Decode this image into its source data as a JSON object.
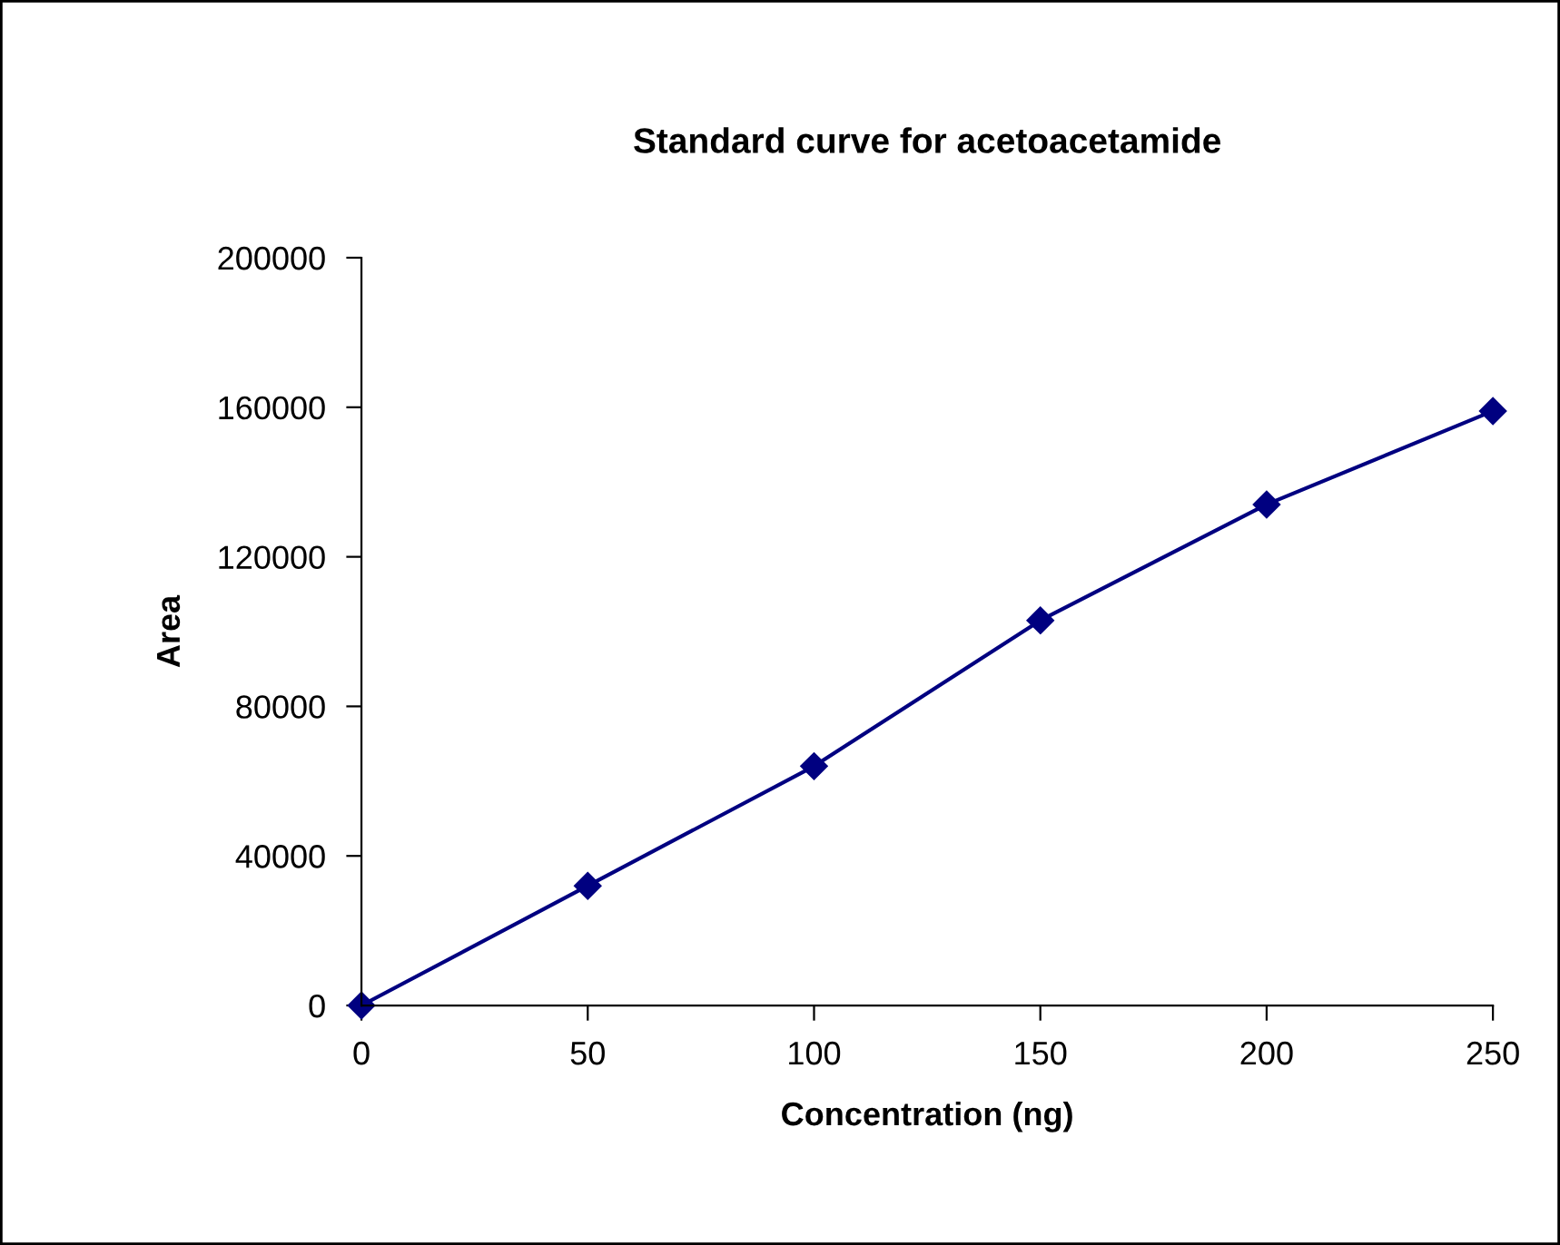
{
  "chart_data": {
    "type": "line",
    "title": "Standard curve for acetoacetamide",
    "xlabel": "Concentration (ng)",
    "ylabel": "Area",
    "x": [
      0,
      50,
      100,
      150,
      200,
      250
    ],
    "series": [
      {
        "color": "#000080",
        "values": [
          0,
          32000,
          64000,
          103000,
          134000,
          159000
        ]
      }
    ],
    "xlim": [
      0,
      250
    ],
    "xticks": [
      0,
      50,
      100,
      150,
      200,
      250
    ],
    "ylim": [
      0,
      200000
    ],
    "yticks": [
      0,
      40000,
      80000,
      120000,
      160000,
      200000
    ],
    "grid": false,
    "legend": false,
    "marker": "diamond",
    "line_style": "solid"
  }
}
